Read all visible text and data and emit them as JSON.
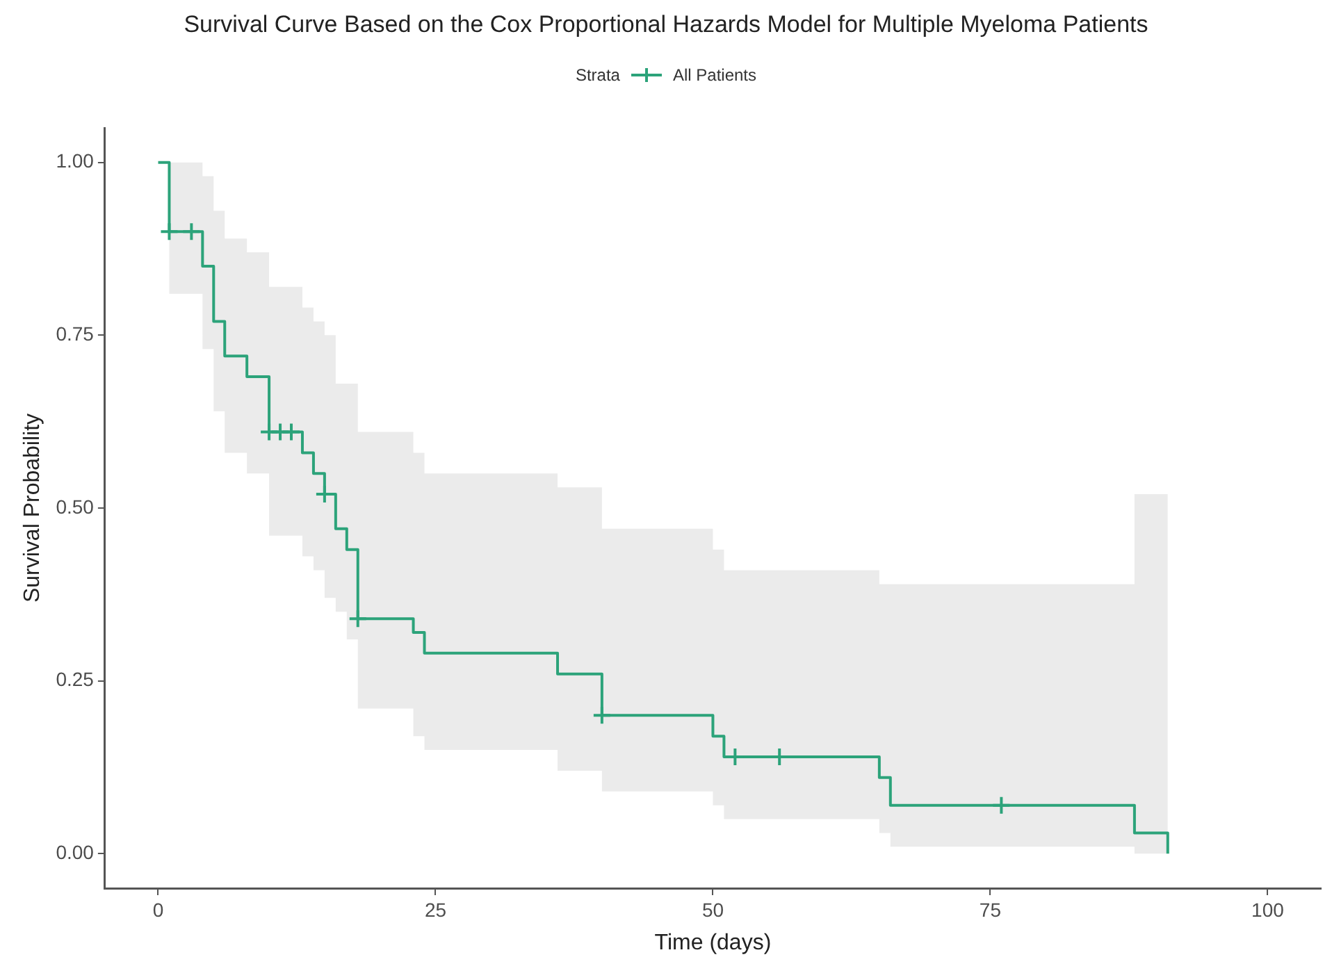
{
  "chart_data": {
    "type": "step",
    "title": "Survival Curve Based on the Cox Proportional Hazards Model for Multiple Myeloma Patients",
    "xlabel": "Time (days)",
    "ylabel": "Survival Probability",
    "legend_title": "Strata",
    "legend": "top",
    "xlim": [
      -4.8,
      104.8
    ],
    "ylim": [
      -0.05,
      1.05
    ],
    "xticks": [
      0,
      25,
      50,
      75,
      100
    ],
    "yticks": [
      {
        "value": 0,
        "label": "0.00"
      },
      {
        "value": 0.25,
        "label": "0.25"
      },
      {
        "value": 0.5,
        "label": "0.50"
      },
      {
        "value": 0.75,
        "label": "0.75"
      },
      {
        "value": 1,
        "label": "1.00"
      }
    ],
    "x": [
      0,
      1,
      4,
      5,
      6,
      8,
      10,
      13,
      14,
      15,
      16,
      17,
      18,
      23,
      24,
      36,
      40,
      50,
      51,
      65,
      66,
      88,
      91
    ],
    "series": [
      {
        "name": "All Patients",
        "color": "#2ca37a",
        "values": [
          1,
          0.9,
          0.85,
          0.77,
          0.72,
          0.69,
          0.61,
          0.58,
          0.55,
          0.52,
          0.47,
          0.44,
          0.34,
          0.32,
          0.29,
          0.26,
          0.2,
          0.17,
          0.14,
          0.11,
          0.07,
          0.03,
          0
        ],
        "upper": [
          1,
          1,
          0.98,
          0.93,
          0.89,
          0.87,
          0.82,
          0.79,
          0.77,
          0.75,
          0.68,
          0.68,
          0.61,
          0.58,
          0.55,
          0.53,
          0.47,
          0.44,
          0.41,
          0.39,
          0.39,
          0.52,
          0.52
        ],
        "lower": [
          1,
          0.81,
          0.73,
          0.64,
          0.58,
          0.55,
          0.46,
          0.43,
          0.41,
          0.37,
          0.35,
          0.31,
          0.21,
          0.17,
          0.15,
          0.12,
          0.09,
          0.07,
          0.05,
          0.03,
          0.01,
          0,
          0
        ]
      },
      {
        "type": "scatter",
        "marker": "cross",
        "color": "#2ca37a",
        "x": [
          1,
          3,
          10,
          11,
          12,
          15,
          18,
          40,
          52,
          56,
          76
        ],
        "values": [
          0.9,
          0.9,
          0.61,
          0.61,
          0.61,
          0.52,
          0.34,
          0.2,
          0.14,
          0.14,
          0.07
        ]
      }
    ]
  }
}
